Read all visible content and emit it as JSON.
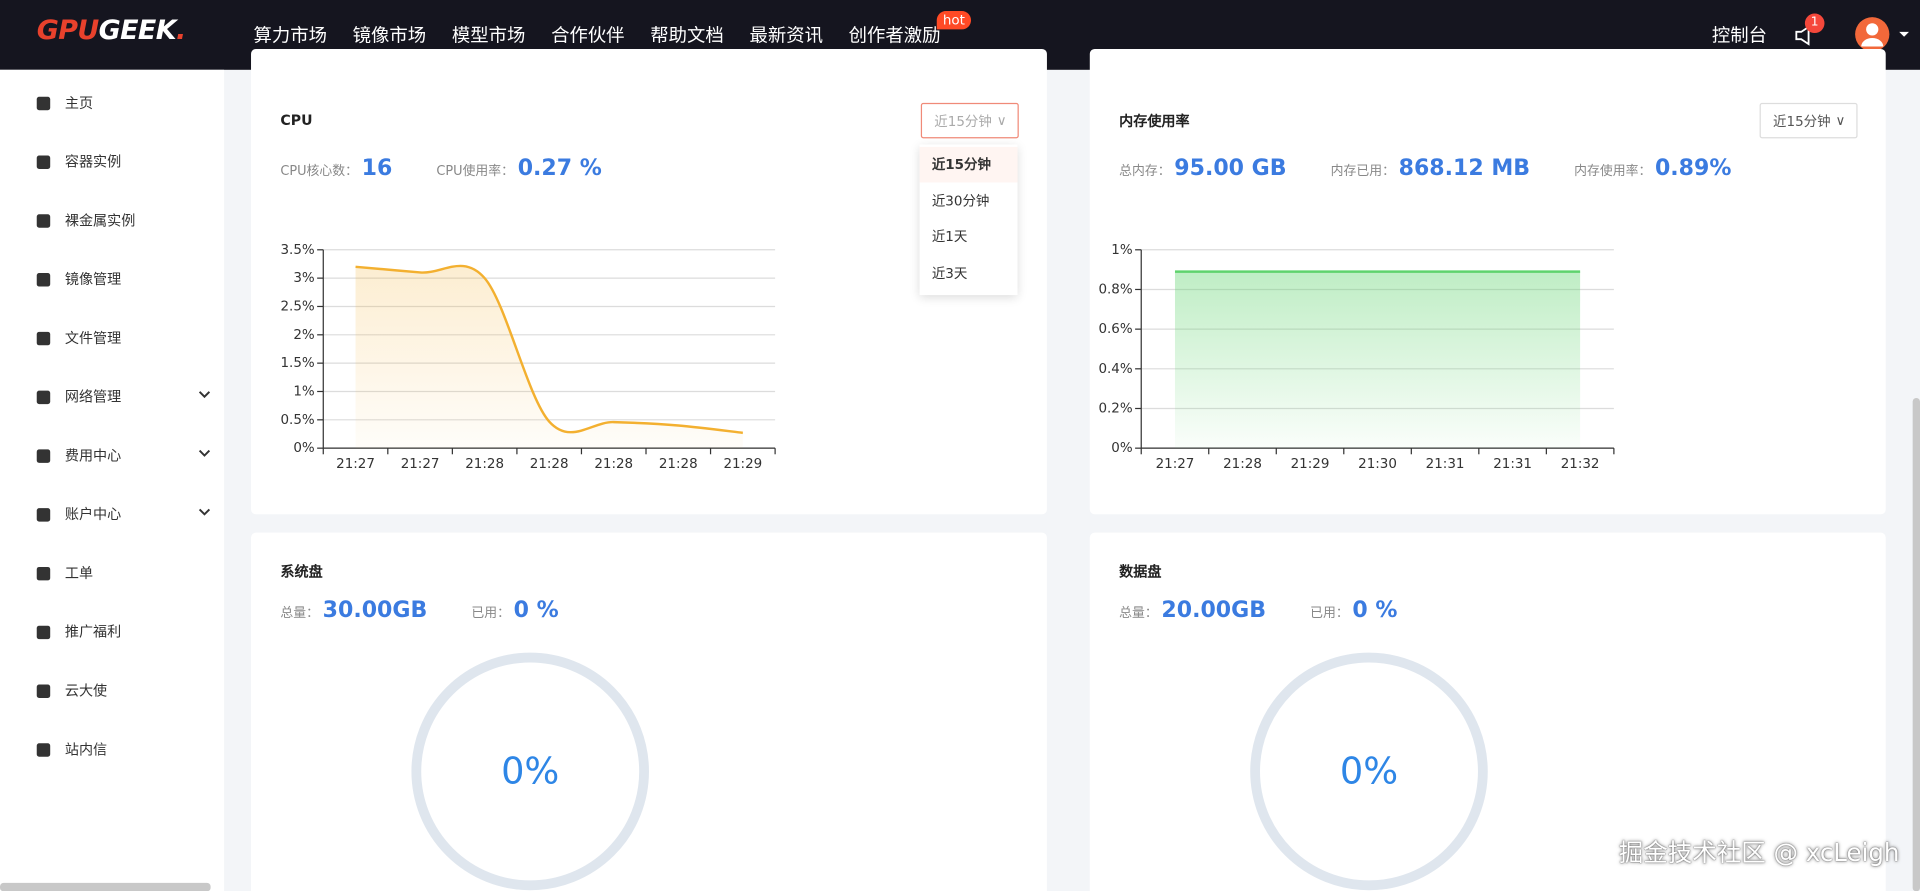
{
  "nav": {
    "logo": {
      "red": "GPU",
      "white": "GEEK",
      "dot": "."
    },
    "items": [
      "算力市场",
      "镜像市场",
      "模型市场",
      "合作伙伴",
      "帮助文档",
      "最新资讯",
      "创作者激励"
    ],
    "hot": "hot",
    "console": "控制台",
    "badge": "1"
  },
  "sidebar": [
    {
      "label": "主页"
    },
    {
      "label": "容器实例"
    },
    {
      "label": "裸金属实例"
    },
    {
      "label": "镜像管理"
    },
    {
      "label": "文件管理"
    },
    {
      "label": "网络管理",
      "expandable": true
    },
    {
      "label": "费用中心",
      "expandable": true
    },
    {
      "label": "账户中心",
      "expandable": true
    },
    {
      "label": "工单"
    },
    {
      "label": "推广福利"
    },
    {
      "label": "云大使"
    },
    {
      "label": "站内信"
    }
  ],
  "cpu": {
    "title": "CPU",
    "range": "近15分钟",
    "options": [
      "近15分钟",
      "近30分钟",
      "近1天",
      "近3天"
    ],
    "stats": [
      {
        "label": "CPU核心数：",
        "value": "16"
      },
      {
        "label": "CPU使用率：",
        "value": "0.27 %"
      }
    ]
  },
  "memory": {
    "title": "内存使用率",
    "range": "近15分钟",
    "stats": [
      {
        "label": "总内存：",
        "value": "95.00 GB"
      },
      {
        "label": "内存已用：",
        "value": "868.12 MB"
      },
      {
        "label": "内存使用率：",
        "value": "0.89%"
      }
    ]
  },
  "system_disk": {
    "title": "系统盘",
    "stats": [
      {
        "label": "总量：",
        "value": "30.00GB"
      },
      {
        "label": "已用：",
        "value": "0 %"
      }
    ],
    "gauge": "0%"
  },
  "data_disk": {
    "title": "数据盘",
    "stats": [
      {
        "label": "总量：",
        "value": "20.00GB"
      },
      {
        "label": "已用：",
        "value": "0 %"
      }
    ],
    "gauge": "0%"
  },
  "watermark": "掘金技术社区 @ xcLeigh",
  "chart_data": [
    {
      "type": "line",
      "categories": [
        "21:27",
        "21:27",
        "21:28",
        "21:28",
        "21:28",
        "21:28",
        "21:29"
      ],
      "values": [
        3.2,
        3.1,
        3.0,
        0.47,
        0.46,
        0.4,
        0.27
      ],
      "color": "#f3b030",
      "ylim": [
        0,
        3.5
      ],
      "yticks": [
        {
          "value": 0,
          "label": "0%"
        },
        {
          "value": 0.5,
          "label": "0.5%"
        },
        {
          "value": 1,
          "label": "1%"
        },
        {
          "value": 1.5,
          "label": "1.5%"
        },
        {
          "value": 2,
          "label": "2%"
        },
        {
          "value": 2.5,
          "label": "2.5%"
        },
        {
          "value": 3,
          "label": "3%"
        },
        {
          "value": 3.5,
          "label": "3.5%"
        }
      ],
      "grid": true,
      "area": true,
      "smooth": true
    },
    {
      "type": "line",
      "categories": [
        "21:27",
        "21:28",
        "21:29",
        "21:30",
        "21:31",
        "21:31",
        "21:32"
      ],
      "values": [
        0.89,
        0.89,
        0.89,
        0.89,
        0.89,
        0.89,
        0.89
      ],
      "color": "#5fd36d",
      "ylim": [
        0,
        1
      ],
      "yticks": [
        {
          "value": 0,
          "label": "0%"
        },
        {
          "value": 0.2,
          "label": "0.2%"
        },
        {
          "value": 0.4,
          "label": "0.4%"
        },
        {
          "value": 0.6,
          "label": "0.6%"
        },
        {
          "value": 0.8,
          "label": "0.8%"
        },
        {
          "value": 1,
          "label": "1%"
        }
      ],
      "grid": true,
      "area": true,
      "smooth": false
    }
  ]
}
